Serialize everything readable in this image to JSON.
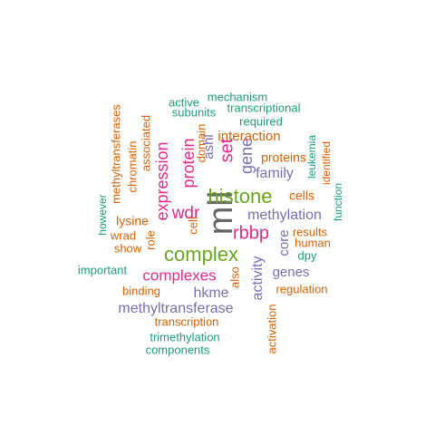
{
  "colors": {
    "green": "#1b9e77",
    "orange": "#d95f02",
    "purple": "#7570b3",
    "magenta": "#e7298a",
    "lime": "#66a61e",
    "gray": "#666666"
  },
  "words": [
    {
      "text": "mll",
      "color": "gray"
    },
    {
      "text": "complex",
      "color": "lime"
    },
    {
      "text": "histone",
      "color": "lime"
    },
    {
      "text": "rbbp",
      "color": "magenta"
    },
    {
      "text": "wdr",
      "color": "magenta"
    },
    {
      "text": "complexes",
      "color": "magenta"
    },
    {
      "text": "expression",
      "color": "magenta"
    },
    {
      "text": "protein",
      "color": "magenta"
    },
    {
      "text": "set",
      "color": "magenta"
    },
    {
      "text": "methylation",
      "color": "purple"
    },
    {
      "text": "methyltransferase",
      "color": "purple"
    },
    {
      "text": "gene",
      "color": "purple"
    },
    {
      "text": "family",
      "color": "purple"
    },
    {
      "text": "activity",
      "color": "purple"
    },
    {
      "text": "genes",
      "color": "purple"
    },
    {
      "text": "hkme",
      "color": "purple"
    },
    {
      "text": "ashl",
      "color": "purple"
    },
    {
      "text": "core",
      "color": "purple"
    },
    {
      "text": "interaction",
      "color": "orange"
    },
    {
      "text": "proteins",
      "color": "orange"
    },
    {
      "text": "cells",
      "color": "orange"
    },
    {
      "text": "lysine",
      "color": "orange"
    },
    {
      "text": "domain",
      "color": "orange"
    },
    {
      "text": "associated",
      "color": "orange"
    },
    {
      "text": "chromatin",
      "color": "orange"
    },
    {
      "text": "methyltransferases",
      "color": "orange"
    },
    {
      "text": "identified",
      "color": "orange"
    },
    {
      "text": "results",
      "color": "orange"
    },
    {
      "text": "human",
      "color": "orange"
    },
    {
      "text": "wrad",
      "color": "orange"
    },
    {
      "text": "show",
      "color": "orange"
    },
    {
      "text": "role",
      "color": "orange"
    },
    {
      "text": "cell",
      "color": "orange"
    },
    {
      "text": "also",
      "color": "orange"
    },
    {
      "text": "binding",
      "color": "orange"
    },
    {
      "text": "regulation",
      "color": "orange"
    },
    {
      "text": "transcription",
      "color": "orange"
    },
    {
      "text": "activation",
      "color": "orange"
    },
    {
      "text": "mechanism",
      "color": "green"
    },
    {
      "text": "active",
      "color": "green"
    },
    {
      "text": "subunits",
      "color": "green"
    },
    {
      "text": "transcriptional",
      "color": "green"
    },
    {
      "text": "required",
      "color": "green"
    },
    {
      "text": "leukemia",
      "color": "green"
    },
    {
      "text": "function",
      "color": "green"
    },
    {
      "text": "however",
      "color": "green"
    },
    {
      "text": "important",
      "color": "green"
    },
    {
      "text": "dpy",
      "color": "green"
    },
    {
      "text": "trimethylation",
      "color": "green"
    },
    {
      "text": "components",
      "color": "green"
    }
  ]
}
